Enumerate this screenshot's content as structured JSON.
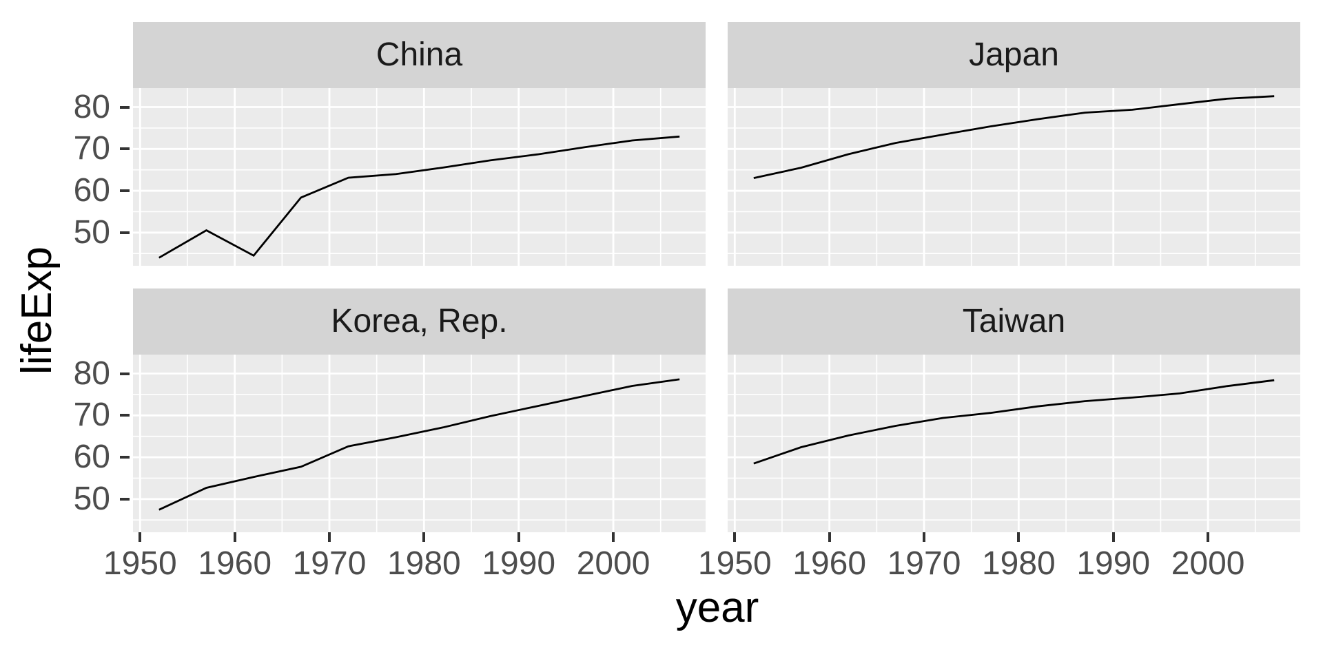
{
  "chart_data": {
    "type": "line",
    "title": "",
    "xlabel": "year",
    "ylabel": "lifeExp",
    "legend": "none",
    "grid": true,
    "facet_layout": "2x2",
    "x": [
      1952,
      1957,
      1962,
      1967,
      1972,
      1977,
      1982,
      1987,
      1992,
      1997,
      2002,
      2007
    ],
    "series": [
      {
        "name": "China",
        "values": [
          44.0,
          50.55,
          44.5,
          58.38,
          63.12,
          63.97,
          65.53,
          67.27,
          68.69,
          70.43,
          72.03,
          72.96
        ]
      },
      {
        "name": "Japan",
        "values": [
          63.03,
          65.5,
          68.73,
          71.43,
          73.42,
          75.38,
          77.11,
          78.67,
          79.36,
          80.69,
          82.0,
          82.6
        ]
      },
      {
        "name": "Korea, Rep.",
        "values": [
          47.45,
          52.68,
          55.29,
          57.72,
          62.61,
          64.77,
          67.12,
          69.81,
          72.24,
          74.65,
          77.05,
          78.62
        ]
      },
      {
        "name": "Taiwan",
        "values": [
          58.5,
          62.4,
          65.2,
          67.5,
          69.39,
          70.59,
          72.16,
          73.4,
          74.26,
          75.25,
          76.99,
          78.4
        ]
      }
    ],
    "xlim": [
      1949.25,
      2009.75
    ],
    "ylim": [
      42.07,
      84.53
    ],
    "x_ticks": [
      1950,
      1960,
      1970,
      1980,
      1990,
      2000
    ],
    "x_minor_ticks": [
      1955,
      1965,
      1975,
      1985,
      1995,
      2005
    ],
    "y_ticks": [
      80,
      70,
      60,
      50
    ],
    "y_minor_ticks": [
      75,
      65,
      55,
      45
    ],
    "colors": {
      "panel_bg": "#EBEBEB",
      "strip_bg": "#D4D4D4",
      "grid": "#FFFFFF",
      "line": "#000000",
      "tick_label": "#4D4D4D",
      "tick_mark": "#333333",
      "strip_text": "#1A1A1A",
      "axis_title": "#000000"
    }
  }
}
